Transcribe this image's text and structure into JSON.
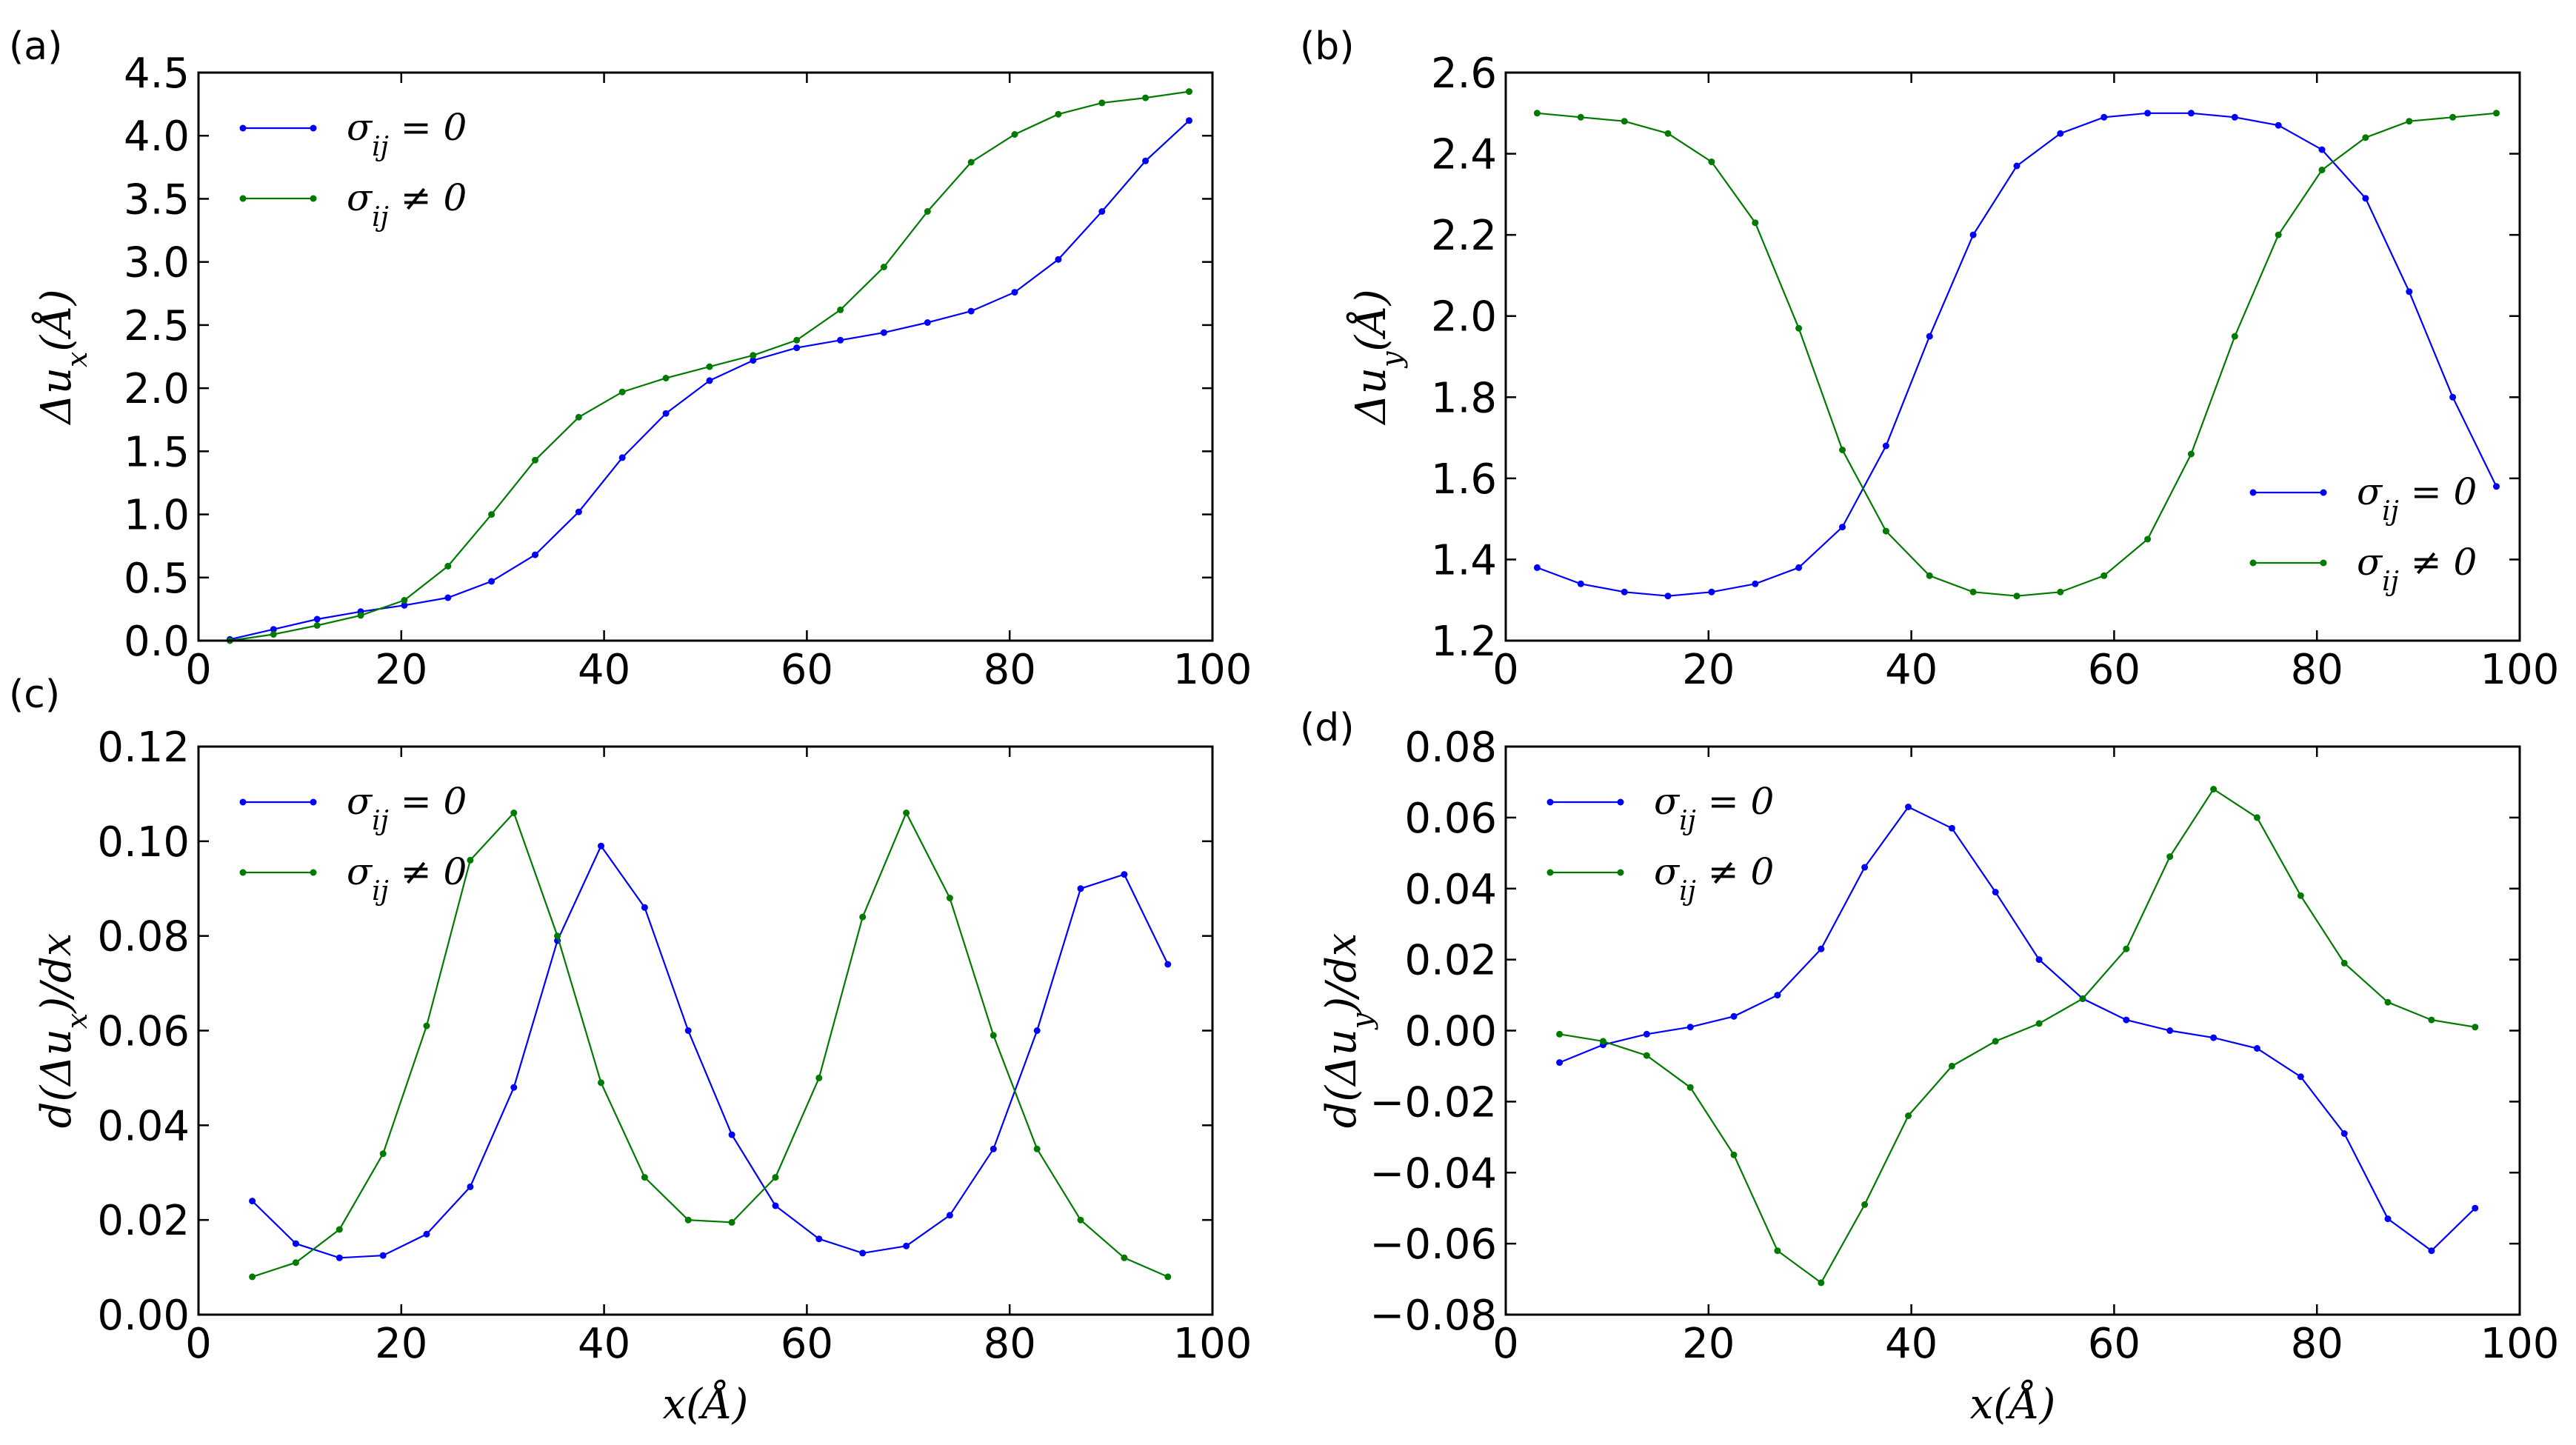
{
  "colors": {
    "series_1": "#0000ff",
    "series_2": "#007a00"
  },
  "chart_data": [
    {
      "panel": "(a)",
      "type": "line",
      "xlabel": "",
      "ylabel": "Δu_x(Å)",
      "xlim": [
        0,
        100
      ],
      "ylim": [
        0,
        4.5
      ],
      "xticks": [
        "0",
        "20",
        "40",
        "60",
        "80",
        "100"
      ],
      "yticks": [
        "0.0",
        "0.5",
        "1.0",
        "1.5",
        "2.0",
        "2.5",
        "3.0",
        "3.5",
        "4.0",
        "4.5"
      ],
      "legend_position": "upper-left",
      "series": [
        {
          "name": "σ_ij = 0",
          "x": [
            3.1,
            7.4,
            11.7,
            16.0,
            20.3,
            24.6,
            28.9,
            33.2,
            37.5,
            41.8,
            46.1,
            50.4,
            54.7,
            59.0,
            63.3,
            67.6,
            71.9,
            76.2,
            80.5,
            84.8,
            89.1,
            93.4,
            97.7
          ],
          "y": [
            0.01,
            0.09,
            0.17,
            0.23,
            0.28,
            0.34,
            0.47,
            0.68,
            1.02,
            1.45,
            1.8,
            2.06,
            2.22,
            2.32,
            2.38,
            2.44,
            2.52,
            2.61,
            2.76,
            3.02,
            3.4,
            3.8,
            4.12
          ]
        },
        {
          "name": "σ_ij ≠ 0",
          "x": [
            3.1,
            7.4,
            11.7,
            16.0,
            20.3,
            24.6,
            28.9,
            33.2,
            37.5,
            41.8,
            46.1,
            50.4,
            54.7,
            59.0,
            63.3,
            67.6,
            71.9,
            76.2,
            80.5,
            84.8,
            89.1,
            93.4,
            97.7
          ],
          "y": [
            0.0,
            0.05,
            0.12,
            0.2,
            0.32,
            0.59,
            1.0,
            1.43,
            1.77,
            1.97,
            2.08,
            2.17,
            2.26,
            2.38,
            2.62,
            2.96,
            3.4,
            3.79,
            4.01,
            4.17,
            4.26,
            4.3,
            4.35
          ]
        }
      ]
    },
    {
      "panel": "(b)",
      "type": "line",
      "xlabel": "",
      "ylabel": "Δu_y(Å)",
      "xlim": [
        0,
        100
      ],
      "ylim": [
        1.2,
        2.6
      ],
      "xticks": [
        "0",
        "20",
        "40",
        "60",
        "80",
        "100"
      ],
      "yticks": [
        "1.2",
        "1.4",
        "1.6",
        "1.8",
        "2.0",
        "2.2",
        "2.4",
        "2.6"
      ],
      "legend_position": "lower-right",
      "series": [
        {
          "name": "σ_ij = 0",
          "x": [
            3.1,
            7.4,
            11.7,
            16.0,
            20.3,
            24.6,
            28.9,
            33.2,
            37.5,
            41.8,
            46.1,
            50.4,
            54.7,
            59.0,
            63.3,
            67.6,
            71.9,
            76.2,
            80.5,
            84.8,
            89.1,
            93.4,
            97.7
          ],
          "y": [
            1.38,
            1.34,
            1.32,
            1.31,
            1.32,
            1.34,
            1.38,
            1.48,
            1.68,
            1.95,
            2.2,
            2.37,
            2.45,
            2.49,
            2.5,
            2.5,
            2.49,
            2.47,
            2.41,
            2.29,
            2.06,
            1.8,
            1.58
          ]
        },
        {
          "name": "σ_ij ≠ 0",
          "x": [
            3.1,
            7.4,
            11.7,
            16.0,
            20.3,
            24.6,
            28.9,
            33.2,
            37.5,
            41.8,
            46.1,
            50.4,
            54.7,
            59.0,
            63.3,
            67.6,
            71.9,
            76.2,
            80.5,
            84.8,
            89.1,
            93.4,
            97.7
          ],
          "y": [
            2.5,
            2.49,
            2.48,
            2.45,
            2.38,
            2.23,
            1.97,
            1.67,
            1.47,
            1.36,
            1.32,
            1.31,
            1.32,
            1.36,
            1.45,
            1.66,
            1.95,
            2.2,
            2.36,
            2.44,
            2.48,
            2.49,
            2.5
          ]
        }
      ]
    },
    {
      "panel": "(c)",
      "type": "line",
      "xlabel": "x(Å)",
      "ylabel": "d(Δu_x)/dx",
      "xlim": [
        0,
        100
      ],
      "ylim": [
        0,
        0.12
      ],
      "xticks": [
        "0",
        "20",
        "40",
        "60",
        "80",
        "100"
      ],
      "yticks": [
        "0.00",
        "0.02",
        "0.04",
        "0.06",
        "0.08",
        "0.10",
        "0.12"
      ],
      "legend_position": "upper-left",
      "series": [
        {
          "name": "σ_ij = 0",
          "x": [
            5.3,
            9.6,
            13.9,
            18.2,
            22.5,
            26.8,
            31.1,
            35.4,
            39.7,
            44.0,
            48.3,
            52.6,
            56.9,
            61.2,
            65.5,
            69.8,
            74.1,
            78.4,
            82.7,
            87.0,
            91.3,
            95.6
          ],
          "y": [
            0.024,
            0.015,
            0.012,
            0.0125,
            0.017,
            0.027,
            0.048,
            0.079,
            0.099,
            0.086,
            0.06,
            0.038,
            0.023,
            0.016,
            0.013,
            0.0145,
            0.021,
            0.035,
            0.06,
            0.09,
            0.093,
            0.074
          ]
        },
        {
          "name": "σ_ij ≠ 0",
          "x": [
            5.3,
            9.6,
            13.9,
            18.2,
            22.5,
            26.8,
            31.1,
            35.4,
            39.7,
            44.0,
            48.3,
            52.6,
            56.9,
            61.2,
            65.5,
            69.8,
            74.1,
            78.4,
            82.7,
            87.0,
            91.3,
            95.6
          ],
          "y": [
            0.008,
            0.011,
            0.018,
            0.034,
            0.061,
            0.096,
            0.106,
            0.08,
            0.049,
            0.029,
            0.02,
            0.0195,
            0.029,
            0.05,
            0.084,
            0.106,
            0.088,
            0.059,
            0.035,
            0.02,
            0.012,
            0.008
          ]
        }
      ]
    },
    {
      "panel": "(d)",
      "type": "line",
      "xlabel": "x(Å)",
      "ylabel": "d(Δu_y)/dx",
      "xlim": [
        0,
        100
      ],
      "ylim": [
        -0.08,
        0.08
      ],
      "xticks": [
        "0",
        "20",
        "40",
        "60",
        "80",
        "100"
      ],
      "yticks": [
        "−0.08",
        "−0.06",
        "−0.04",
        "−0.02",
        "0.00",
        "0.02",
        "0.04",
        "0.06",
        "0.08"
      ],
      "legend_position": "upper-left",
      "series": [
        {
          "name": "σ_ij = 0",
          "x": [
            5.3,
            9.6,
            13.9,
            18.2,
            22.5,
            26.8,
            31.1,
            35.4,
            39.7,
            44.0,
            48.3,
            52.6,
            56.9,
            61.2,
            65.5,
            69.8,
            74.1,
            78.4,
            82.7,
            87.0,
            91.3,
            95.6
          ],
          "y": [
            -0.009,
            -0.004,
            -0.001,
            0.001,
            0.004,
            0.01,
            0.023,
            0.046,
            0.063,
            0.057,
            0.039,
            0.02,
            0.009,
            0.003,
            0.0,
            -0.002,
            -0.005,
            -0.013,
            -0.029,
            -0.053,
            -0.062,
            -0.05
          ]
        },
        {
          "name": "σ_ij ≠ 0",
          "x": [
            5.3,
            9.6,
            13.9,
            18.2,
            22.5,
            26.8,
            31.1,
            35.4,
            39.7,
            44.0,
            48.3,
            52.6,
            56.9,
            61.2,
            65.5,
            69.8,
            74.1,
            78.4,
            82.7,
            87.0,
            91.3,
            95.6
          ],
          "y": [
            -0.001,
            -0.003,
            -0.007,
            -0.016,
            -0.035,
            -0.062,
            -0.071,
            -0.049,
            -0.024,
            -0.01,
            -0.003,
            0.002,
            0.009,
            0.023,
            0.049,
            0.068,
            0.06,
            0.038,
            0.019,
            0.008,
            0.003,
            0.001
          ]
        }
      ]
    }
  ]
}
